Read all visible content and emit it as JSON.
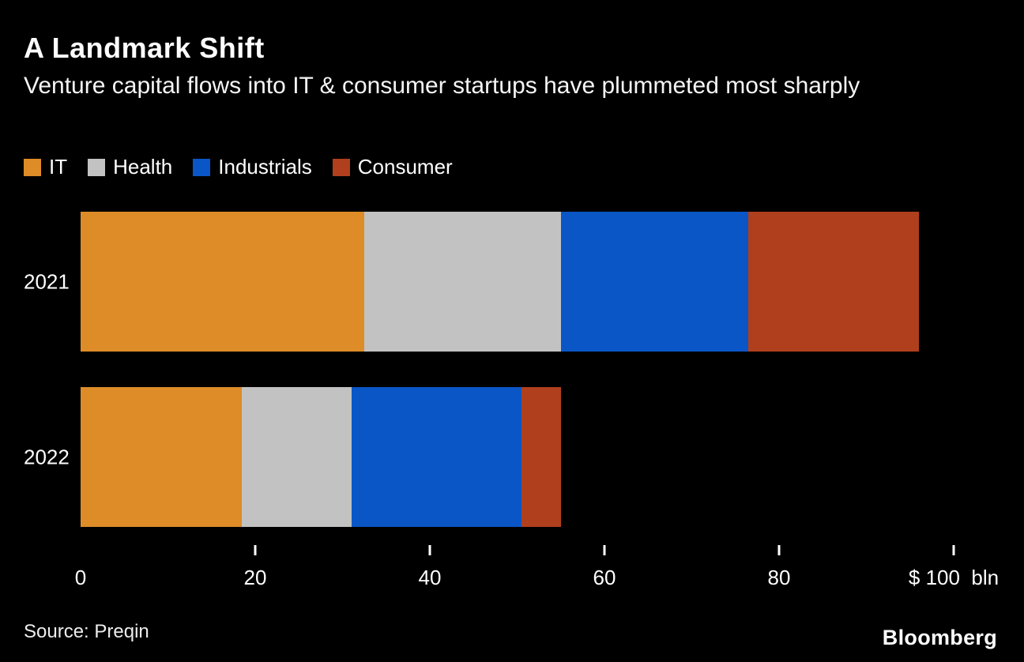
{
  "title": "A Landmark Shift",
  "subtitle": "Venture capital flows into IT & consumer startups have plummeted most sharply",
  "source": "Source: Preqin",
  "brand": "Bloomberg",
  "colors": {
    "background": "#000000",
    "text": "#ffffff",
    "it": "#dd8c27",
    "health": "#c2c2c2",
    "industrials": "#0a56c6",
    "consumer": "#b03f1d"
  },
  "legend": [
    {
      "label": "IT",
      "color": "#dd8c27"
    },
    {
      "label": "Health",
      "color": "#c2c2c2"
    },
    {
      "label": "Industrials",
      "color": "#0a56c6"
    },
    {
      "label": "Consumer",
      "color": "#b03f1d"
    }
  ],
  "chart_data": {
    "type": "bar",
    "orientation": "horizontal",
    "stacked": true,
    "title": "A Landmark Shift",
    "subtitle": "Venture capital flows into IT & consumer startups have plummeted most sharply",
    "categories": [
      "2021",
      "2022"
    ],
    "series": [
      {
        "name": "IT",
        "color": "#dd8c27",
        "values": [
          32.5,
          18.5
        ]
      },
      {
        "name": "Health",
        "color": "#c2c2c2",
        "values": [
          22.5,
          12.5
        ]
      },
      {
        "name": "Industrials",
        "color": "#0a56c6",
        "values": [
          21.5,
          19.5
        ]
      },
      {
        "name": "Consumer",
        "color": "#b03f1d",
        "values": [
          19.5,
          4.5
        ]
      }
    ],
    "totals": {
      "2021": 96,
      "2022": 55
    },
    "unit": "$ bln",
    "xlabel": "",
    "ylabel": "",
    "xlim": [
      0,
      100
    ],
    "x_ticks": [
      0,
      20,
      40,
      60,
      80,
      100
    ],
    "x_tick_labels": [
      "0",
      "20",
      "40",
      "60",
      "80",
      "$ 100  bln"
    ],
    "grid": false,
    "legend_position": "top-left"
  }
}
